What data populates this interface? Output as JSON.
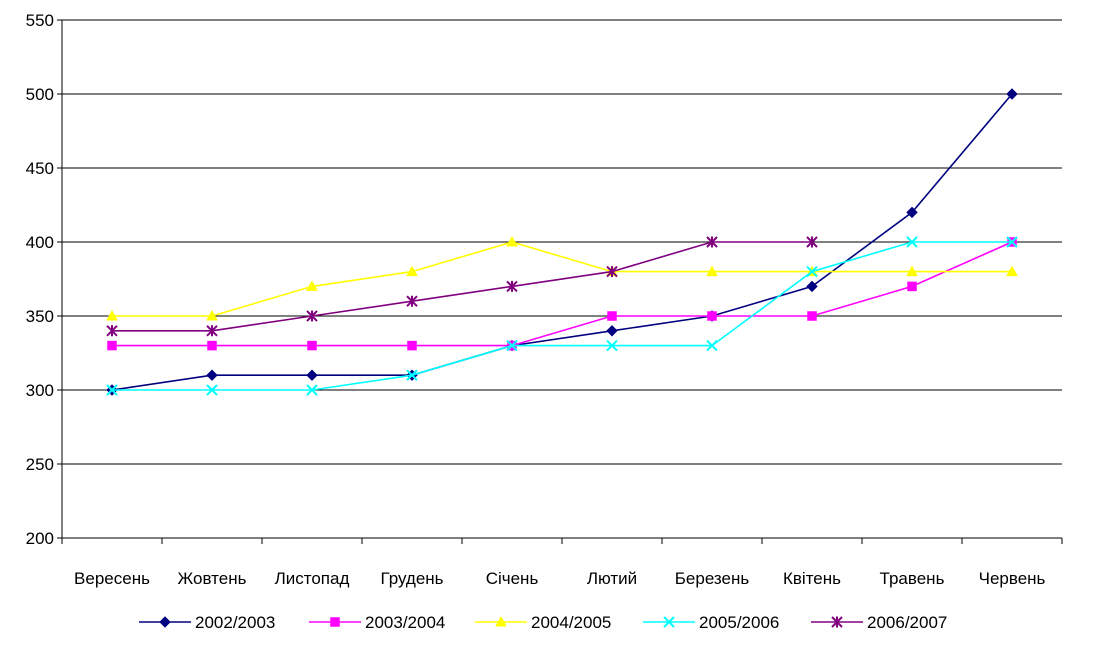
{
  "chart_data": {
    "type": "line",
    "title": "",
    "xlabel": "",
    "ylabel": "",
    "categories": [
      "Вересень",
      "Жовтень",
      "Листопад",
      "Грудень",
      "Січень",
      "Лютий",
      "Березень",
      "Квітень",
      "Травень",
      "Червень"
    ],
    "ylim": [
      200,
      550
    ],
    "yticks": [
      200,
      250,
      300,
      350,
      400,
      450,
      500,
      550
    ],
    "grid": "horizontal",
    "legend_position": "bottom",
    "series": [
      {
        "name": "2002/2003",
        "color": "#000080",
        "marker": "diamond",
        "values": [
          300,
          310,
          310,
          310,
          330,
          340,
          350,
          370,
          420,
          500
        ]
      },
      {
        "name": "2003/2004",
        "color": "#ff00ff",
        "marker": "square",
        "values": [
          330,
          330,
          330,
          330,
          330,
          350,
          350,
          350,
          370,
          400
        ]
      },
      {
        "name": "2004/2005",
        "color": "#ffff00",
        "marker": "triangle",
        "values": [
          350,
          350,
          370,
          380,
          400,
          380,
          380,
          380,
          380,
          380
        ]
      },
      {
        "name": "2005/2006",
        "color": "#00ffff",
        "marker": "x",
        "values": [
          300,
          300,
          300,
          310,
          330,
          330,
          330,
          380,
          400,
          400
        ]
      },
      {
        "name": "2006/2007",
        "color": "#800080",
        "marker": "star",
        "values": [
          340,
          340,
          350,
          360,
          370,
          380,
          400,
          400,
          null,
          null
        ]
      }
    ]
  }
}
